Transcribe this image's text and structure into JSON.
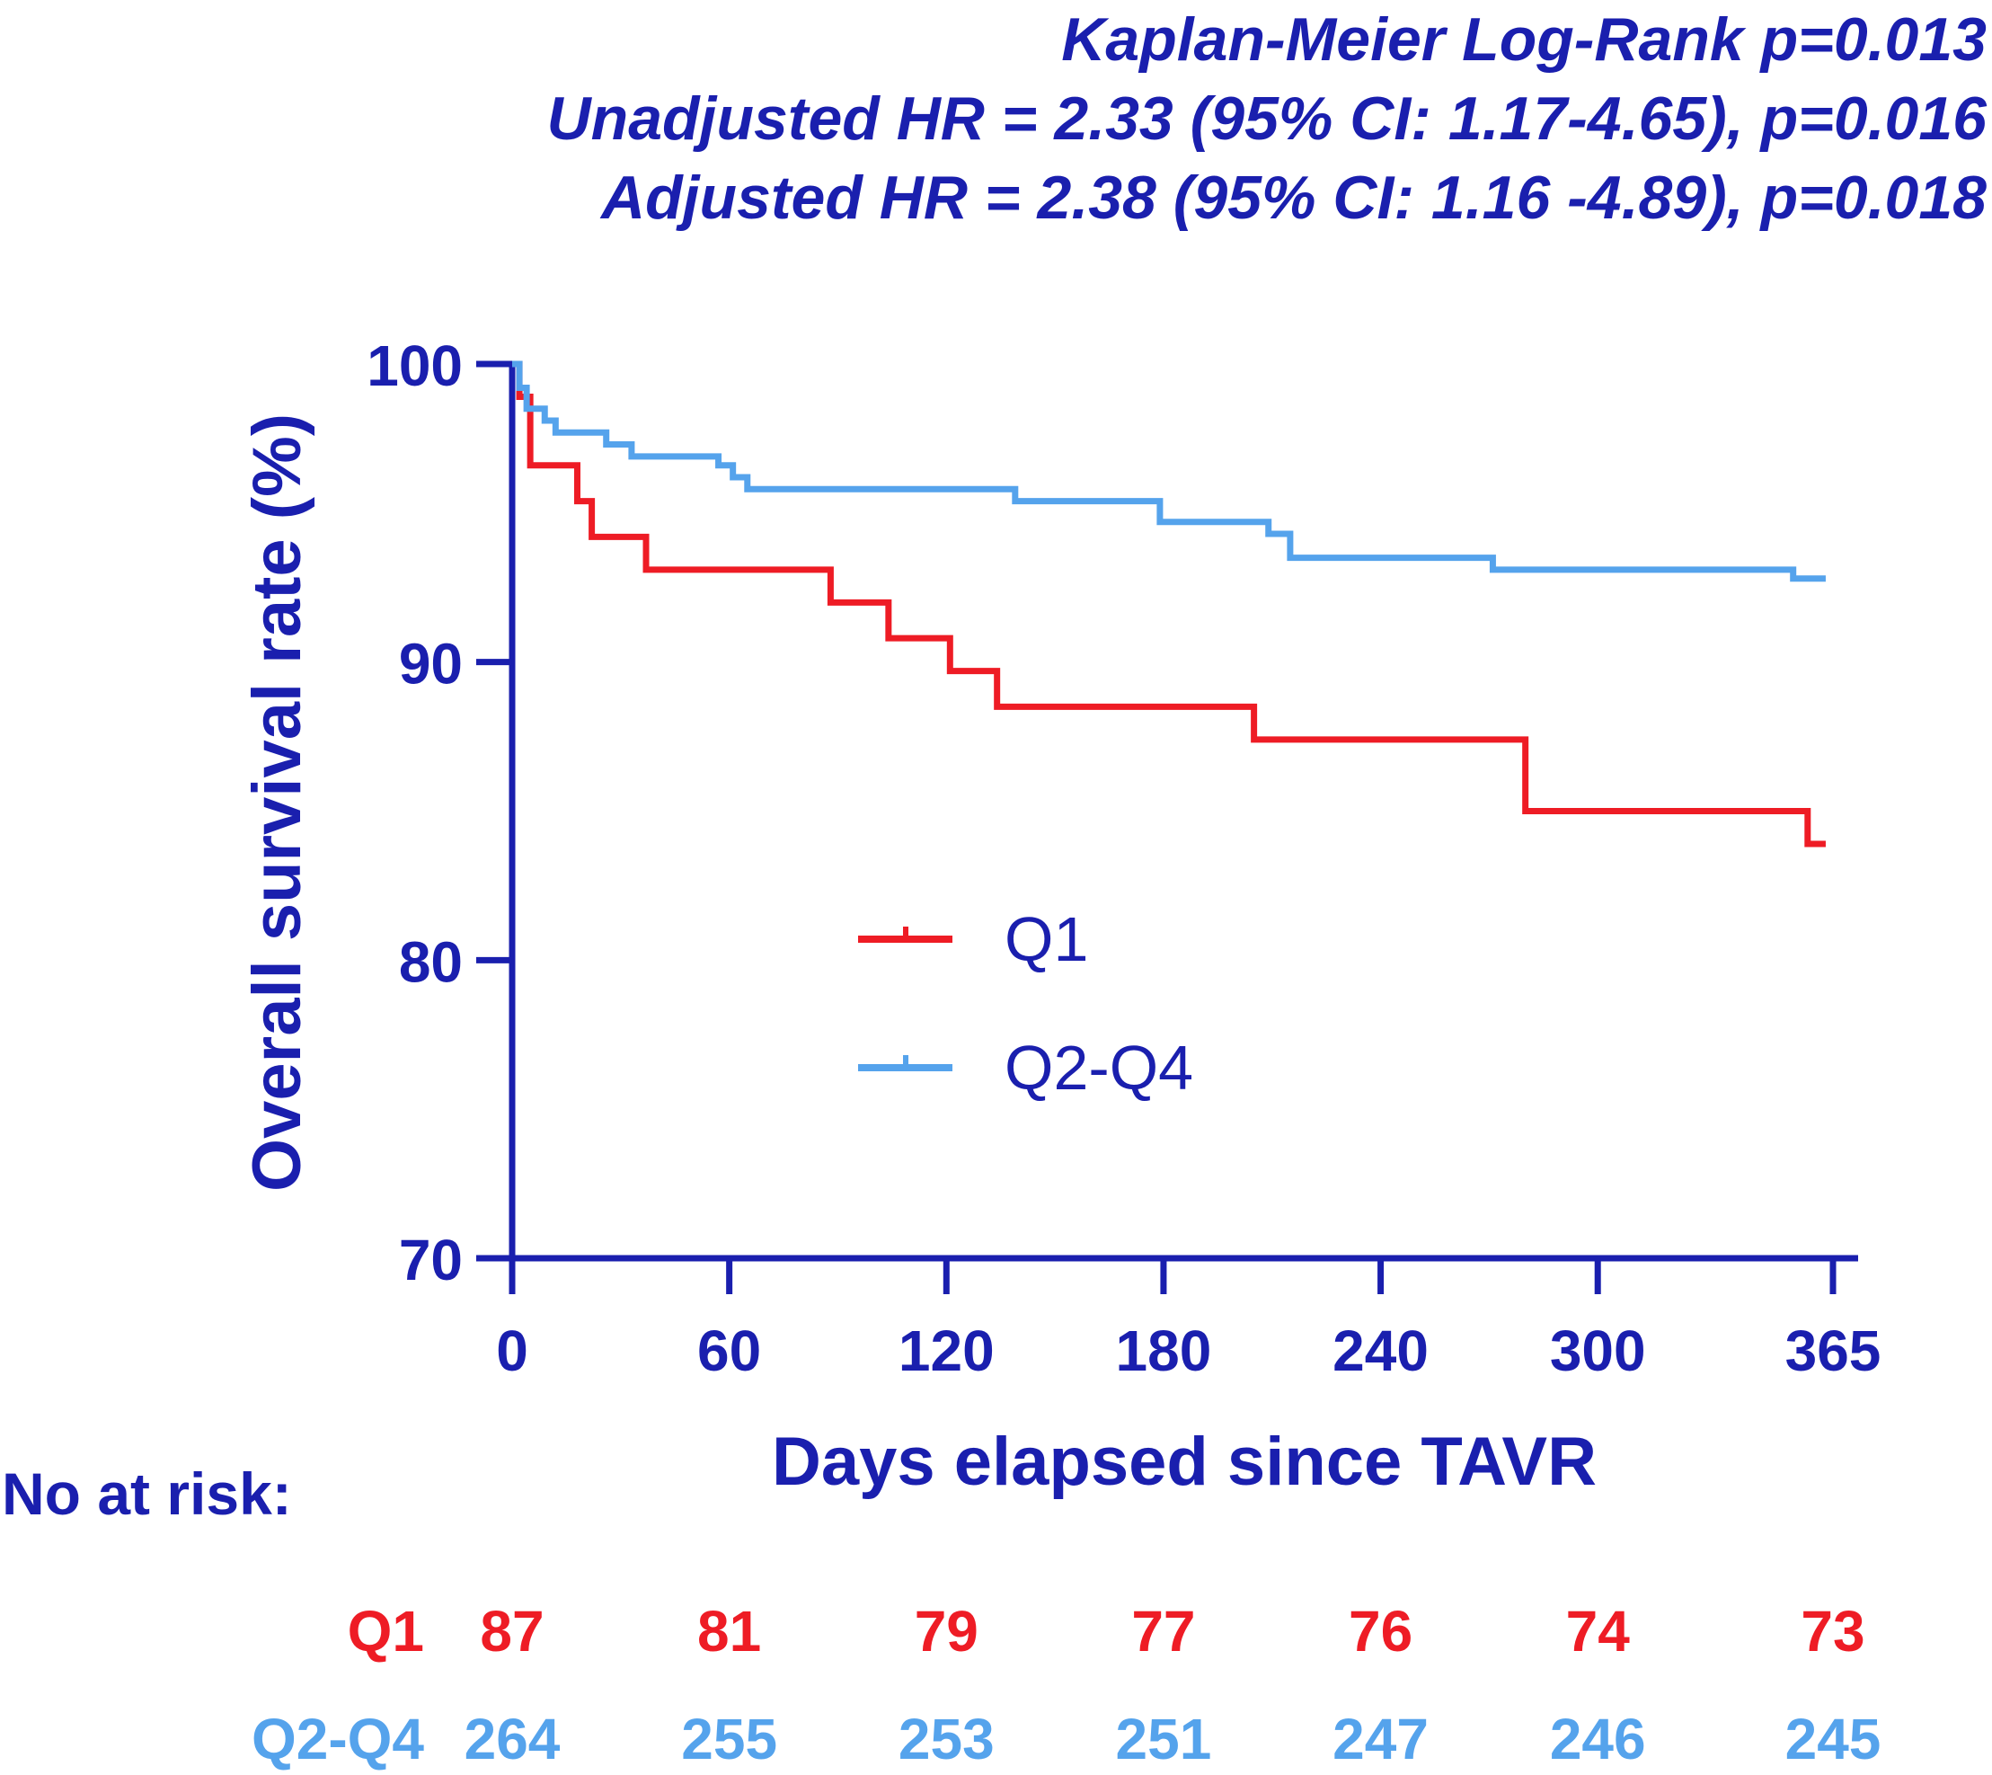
{
  "stats": {
    "line1": "Kaplan-Meier Log-Rank p=0.013",
    "line2": "Unadjusted HR = 2.33 (95% CI: 1.17-4.65), p=0.016",
    "line3": "Adjusted HR = 2.38 (95% CI: 1.16 -4.89), p=0.018"
  },
  "colors": {
    "axis": "#1a1fae",
    "q1": "#ee1c25",
    "q2q4": "#55a3ec"
  },
  "chart_data": {
    "type": "line",
    "step": true,
    "title": "",
    "xlabel": "Days elapsed since TAVR",
    "ylabel": "Overall survival rate (%)",
    "xlim": [
      0,
      365
    ],
    "ylim": [
      70,
      100
    ],
    "xticks": [
      0,
      60,
      120,
      180,
      240,
      300,
      365
    ],
    "yticks": [
      70,
      80,
      90,
      100
    ],
    "legend_position": "center",
    "series": [
      {
        "name": "Q1",
        "color": "#ee1c25",
        "points": [
          [
            0,
            100
          ],
          [
            2,
            98.9
          ],
          [
            5,
            96.6
          ],
          [
            18,
            95.4
          ],
          [
            22,
            94.2
          ],
          [
            37,
            93.1
          ],
          [
            88,
            92.0
          ],
          [
            104,
            90.8
          ],
          [
            121,
            89.7
          ],
          [
            134,
            88.5
          ],
          [
            205,
            87.4
          ],
          [
            280,
            85.0
          ],
          [
            358,
            83.9
          ],
          [
            363,
            83.9
          ]
        ]
      },
      {
        "name": "Q2-Q4",
        "color": "#55a3ec",
        "points": [
          [
            0,
            100
          ],
          [
            2,
            99.2
          ],
          [
            4,
            98.5
          ],
          [
            9,
            98.1
          ],
          [
            12,
            97.7
          ],
          [
            26,
            97.3
          ],
          [
            33,
            96.9
          ],
          [
            57,
            96.6
          ],
          [
            61,
            96.2
          ],
          [
            65,
            95.8
          ],
          [
            139,
            95.4
          ],
          [
            179,
            94.7
          ],
          [
            209,
            94.3
          ],
          [
            215,
            93.5
          ],
          [
            271,
            93.1
          ],
          [
            354,
            92.8
          ],
          [
            363,
            92.8
          ]
        ]
      }
    ]
  },
  "risk_table": {
    "title": "No at risk:",
    "days": [
      0,
      60,
      120,
      180,
      240,
      300,
      365
    ],
    "rows": [
      {
        "label": "Q1",
        "values": [
          "87",
          "81",
          "79",
          "77",
          "76",
          "74",
          "73"
        ]
      },
      {
        "label": "Q2-Q4",
        "values": [
          "264",
          "255",
          "253",
          "251",
          "247",
          "246",
          "245"
        ]
      }
    ]
  }
}
